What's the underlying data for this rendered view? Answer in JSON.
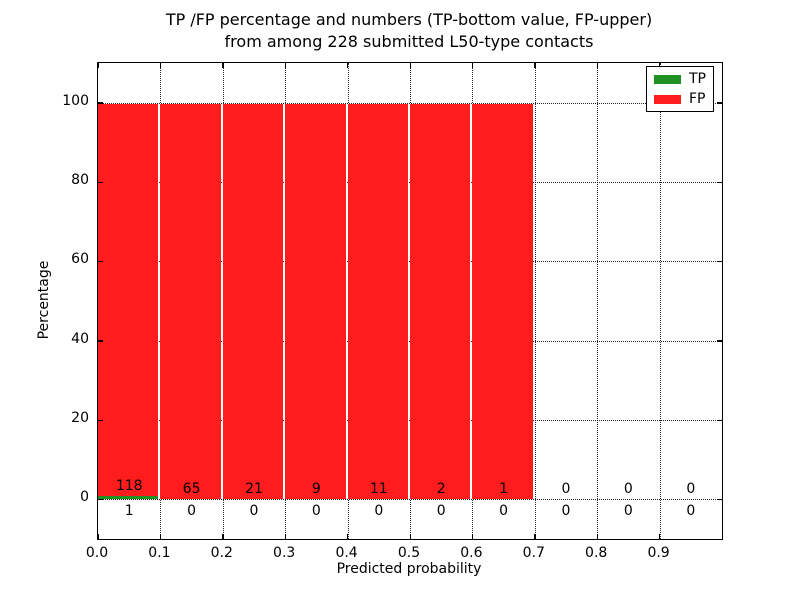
{
  "figure": {
    "title_line1": "TP /FP percentage and numbers (TP-bottom value, FP-upper)",
    "title_line2": "from among 228 submitted L50-type contacts"
  },
  "chart_data": {
    "type": "bar",
    "stacked": true,
    "title": "TP /FP percentage and numbers (TP-bottom value, FP-upper) from among 228 submitted L50-type contacts",
    "xlabel": "Predicted probability",
    "ylabel": "Percentage",
    "total_contacts": 228,
    "bin_starts": [
      0.0,
      0.1,
      0.2,
      0.3,
      0.4,
      0.5,
      0.6,
      0.7,
      0.8,
      0.9
    ],
    "bin_width": 0.1,
    "series": [
      {
        "name": "TP",
        "color": "#1e9122",
        "counts": [
          1,
          0,
          0,
          0,
          0,
          0,
          0,
          0,
          0,
          0
        ]
      },
      {
        "name": "FP",
        "color": "#ff1c1c",
        "counts": [
          118,
          65,
          21,
          9,
          11,
          2,
          1,
          0,
          0,
          0
        ]
      }
    ],
    "bar_percentages_note": "each bin stacked to 100% of bin total; bins with zero counts have no bar",
    "xlim": [
      0.0,
      1.0
    ],
    "ylim": [
      -10,
      110
    ],
    "xtick_labels": [
      "0.0",
      "0.1",
      "0.2",
      "0.3",
      "0.4",
      "0.5",
      "0.6",
      "0.7",
      "0.8",
      "0.9"
    ],
    "ytick_values": [
      0,
      20,
      40,
      60,
      80,
      100
    ],
    "ytick_labels": [
      "0",
      "20",
      "40",
      "60",
      "80",
      "100"
    ],
    "grid": true,
    "grid_style": "dotted",
    "legend_position": "upper right",
    "legend_entries": [
      {
        "label": "TP",
        "color": "#1e9122"
      },
      {
        "label": "FP",
        "color": "#ff1c1c"
      }
    ]
  }
}
